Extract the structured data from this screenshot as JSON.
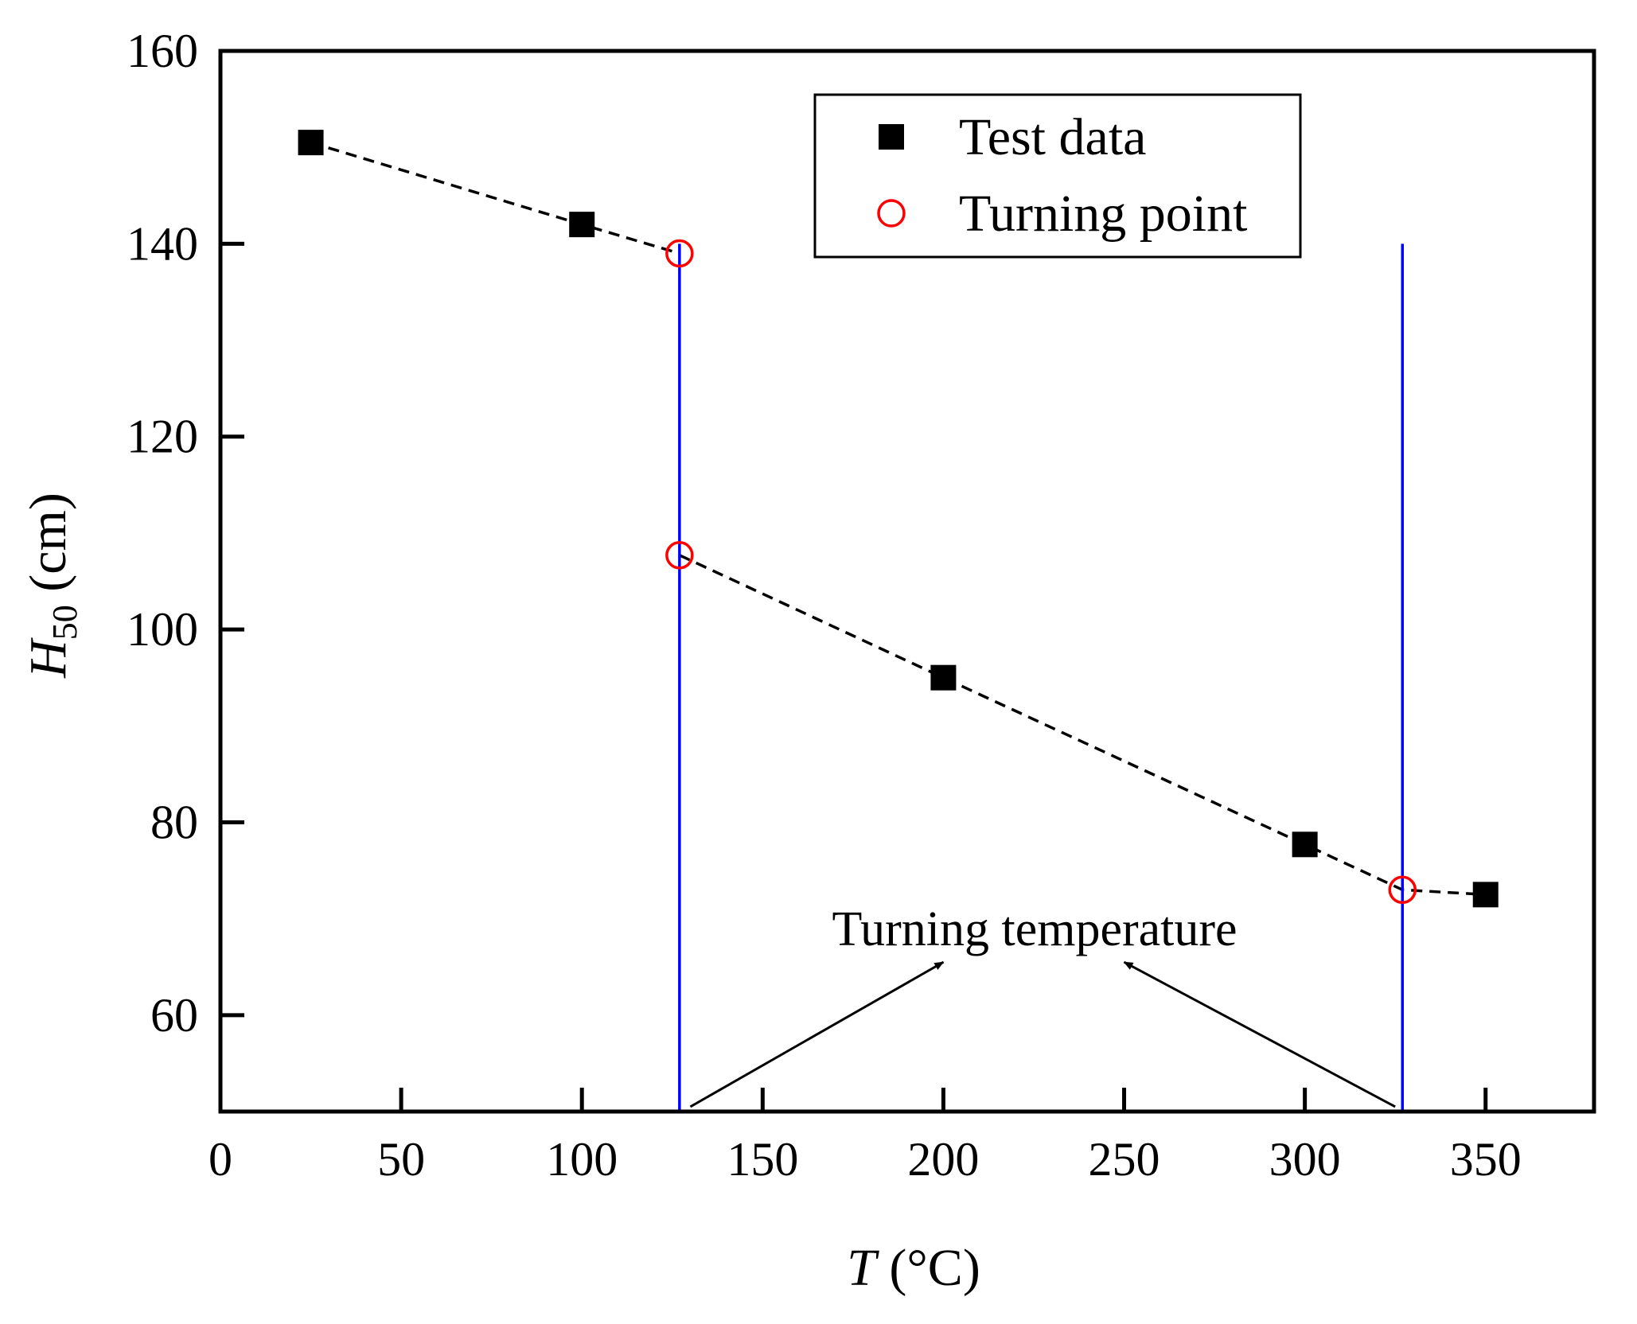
{
  "chart_data": {
    "type": "scatter",
    "xlabel": "(°C)",
    "xlabel_symbol": "T",
    "ylabel": "(cm)",
    "ylabel_symbol": "H",
    "ylabel_subscript": "50",
    "xlim": [
      0,
      380
    ],
    "ylim": [
      50,
      160
    ],
    "xticks": [
      0,
      50,
      100,
      150,
      200,
      250,
      300,
      350
    ],
    "yticks": [
      60,
      80,
      100,
      120,
      140,
      160
    ],
    "series": [
      {
        "name": "Test data",
        "marker": "filled-square",
        "color": "#000000",
        "points": [
          [
            25,
            150.5
          ],
          [
            100,
            142
          ],
          [
            200,
            95
          ],
          [
            300,
            77.7
          ],
          [
            350,
            72.5
          ]
        ]
      },
      {
        "name": "Turning point",
        "marker": "open-circle",
        "color": "#ff0000",
        "points": [
          [
            127,
            139
          ],
          [
            127,
            107.7
          ],
          [
            327,
            73
          ]
        ]
      }
    ],
    "trend_lines": [
      {
        "style": "dashed",
        "color": "#000000",
        "points": [
          [
            25,
            150.5
          ],
          [
            100,
            142
          ],
          [
            127,
            139
          ]
        ]
      },
      {
        "style": "dashed",
        "color": "#000000",
        "points": [
          [
            127,
            107.7
          ],
          [
            200,
            95
          ],
          [
            300,
            77.7
          ],
          [
            327,
            73
          ],
          [
            350,
            72.5
          ]
        ]
      }
    ],
    "vertical_lines": [
      {
        "x": 127,
        "y_top": 140,
        "color": "#0000ff"
      },
      {
        "x": 327,
        "y_top": 140,
        "color": "#0000ff"
      }
    ],
    "annotation": {
      "text": "Turning temperature",
      "arrows": [
        {
          "from": [
            130,
            50.5
          ],
          "to": [
            200,
            65.5
          ]
        },
        {
          "from": [
            325,
            50.5
          ],
          "to": [
            250,
            65.5
          ]
        }
      ]
    },
    "legend": {
      "position": "top-right"
    }
  }
}
